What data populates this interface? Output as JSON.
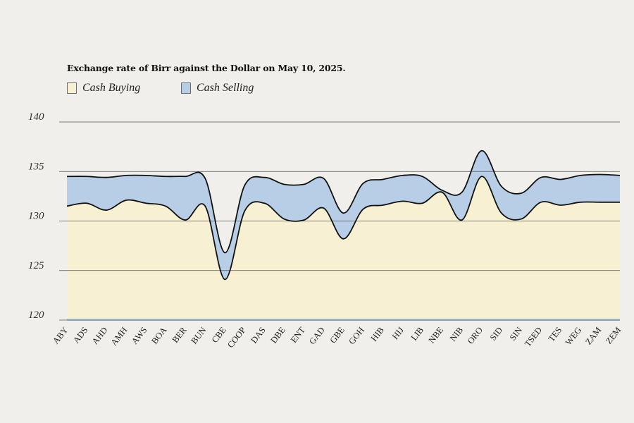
{
  "chart_data": {
    "type": "area",
    "title": "Exchange rate of Birr against the Dollar on May 10, 2025.",
    "categories": [
      "ABY",
      "ADS",
      "AHD",
      "AMH",
      "AWS",
      "BOA",
      "BER",
      "BUN",
      "CBE",
      "COOP",
      "DAS",
      "DBE",
      "ENT",
      "GAD",
      "GBE",
      "GOH",
      "HIB",
      "HIJ",
      "LIB",
      "NBE",
      "NIB",
      "ORO",
      "SID",
      "SIN",
      "TSED",
      "TES",
      "WEG",
      "ZAM",
      "ZEM"
    ],
    "series": [
      {
        "name": "Cash Buying",
        "color": "#f7f0d3",
        "values": [
          131.5,
          131.8,
          131.1,
          132.1,
          131.8,
          131.5,
          130.1,
          131.5,
          124.1,
          131.0,
          131.8,
          130.2,
          130.1,
          131.3,
          128.2,
          131.2,
          131.6,
          132.0,
          131.8,
          132.9,
          130.1,
          134.5,
          130.8,
          130.2,
          131.9,
          131.6,
          131.9,
          131.9,
          131.9
        ]
      },
      {
        "name": "Cash Selling",
        "color": "#b7cee6",
        "values": [
          134.5,
          134.5,
          134.4,
          134.6,
          134.6,
          134.5,
          134.5,
          134.3,
          126.8,
          133.6,
          134.4,
          133.7,
          133.7,
          134.3,
          130.8,
          133.8,
          134.2,
          134.6,
          134.5,
          133.1,
          132.9,
          137.1,
          133.5,
          132.8,
          134.4,
          134.2,
          134.6,
          134.7,
          134.6
        ]
      }
    ],
    "legend": [
      "Cash Buying",
      "Cash Selling"
    ],
    "yticks": [
      120,
      125,
      130,
      135,
      140
    ],
    "ylim": [
      120,
      140
    ],
    "grid": true,
    "legend_position": "top-left"
  }
}
